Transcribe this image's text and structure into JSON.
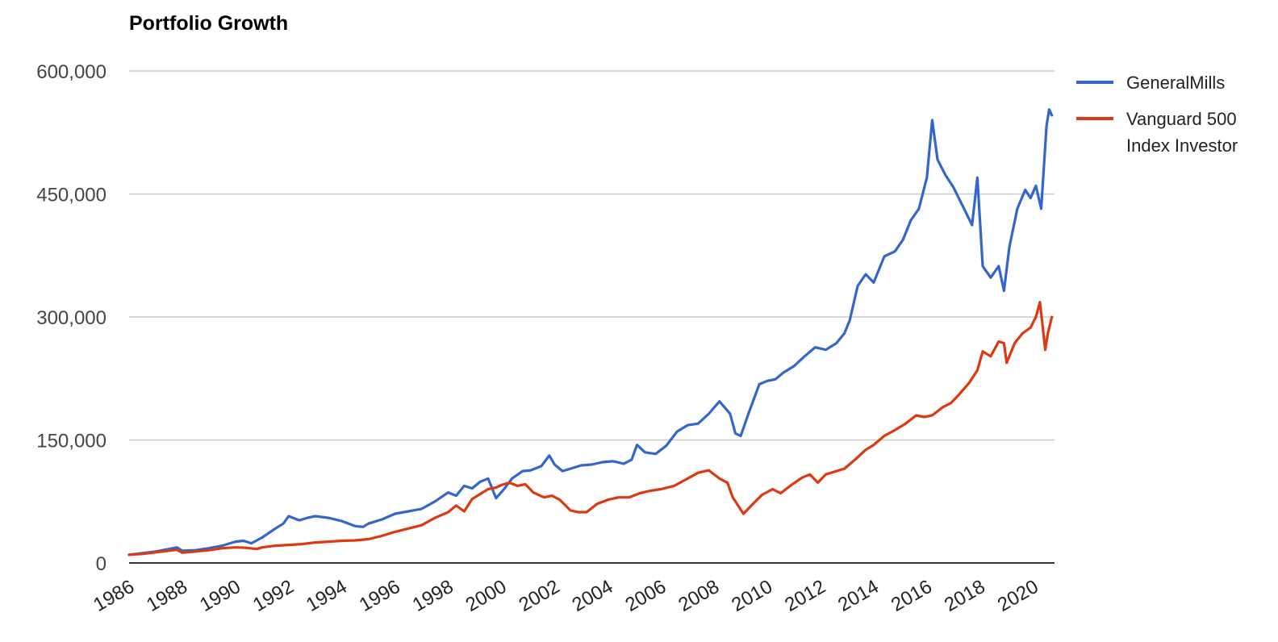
{
  "chart_data": {
    "type": "line",
    "title": "Portfolio Growth",
    "xlabel": "",
    "ylabel": "",
    "x_ticks": [
      "1986",
      "1988",
      "1990",
      "1992",
      "1994",
      "1996",
      "1998",
      "2000",
      "2002",
      "2004",
      "2006",
      "2008",
      "2010",
      "2012",
      "2014",
      "2016",
      "2018",
      "2020"
    ],
    "y_ticks": [
      "0",
      "150,000",
      "300,000",
      "450,000",
      "600,000"
    ],
    "xlim": [
      1986.0,
      2020.8
    ],
    "ylim": [
      0,
      600000
    ],
    "grid": true,
    "legend_position": "right",
    "series": [
      {
        "name": "GeneralMills",
        "legend_lines": [
          "GeneralMills"
        ],
        "color": "#3366cc",
        "points": [
          [
            1986.0,
            10000
          ],
          [
            1986.5,
            12000
          ],
          [
            1987.0,
            14000
          ],
          [
            1987.5,
            17000
          ],
          [
            1987.8,
            19000
          ],
          [
            1988.0,
            15000
          ],
          [
            1988.5,
            15500
          ],
          [
            1989.0,
            18000
          ],
          [
            1989.5,
            21000
          ],
          [
            1990.0,
            26000
          ],
          [
            1990.3,
            27000
          ],
          [
            1990.6,
            24000
          ],
          [
            1991.0,
            31000
          ],
          [
            1991.5,
            42000
          ],
          [
            1991.8,
            48000
          ],
          [
            1992.0,
            57000
          ],
          [
            1992.4,
            52000
          ],
          [
            1992.7,
            55000
          ],
          [
            1993.0,
            57000
          ],
          [
            1993.5,
            55000
          ],
          [
            1994.0,
            51000
          ],
          [
            1994.5,
            45000
          ],
          [
            1994.8,
            44000
          ],
          [
            1995.0,
            48000
          ],
          [
            1995.5,
            53000
          ],
          [
            1996.0,
            60000
          ],
          [
            1996.5,
            63000
          ],
          [
            1997.0,
            66000
          ],
          [
            1997.5,
            75000
          ],
          [
            1998.0,
            86000
          ],
          [
            1998.3,
            82000
          ],
          [
            1998.6,
            94000
          ],
          [
            1998.9,
            91000
          ],
          [
            1999.2,
            99000
          ],
          [
            1999.5,
            103000
          ],
          [
            1999.8,
            79000
          ],
          [
            2000.1,
            90000
          ],
          [
            2000.4,
            103000
          ],
          [
            2000.8,
            112000
          ],
          [
            2001.1,
            113000
          ],
          [
            2001.5,
            118000
          ],
          [
            2001.8,
            131000
          ],
          [
            2002.0,
            120000
          ],
          [
            2002.3,
            112000
          ],
          [
            2002.6,
            115000
          ],
          [
            2003.0,
            119000
          ],
          [
            2003.4,
            120000
          ],
          [
            2003.8,
            123000
          ],
          [
            2004.2,
            124000
          ],
          [
            2004.6,
            121000
          ],
          [
            2004.9,
            126000
          ],
          [
            2005.1,
            144000
          ],
          [
            2005.4,
            135000
          ],
          [
            2005.8,
            133000
          ],
          [
            2006.2,
            143000
          ],
          [
            2006.6,
            160000
          ],
          [
            2007.0,
            168000
          ],
          [
            2007.4,
            170000
          ],
          [
            2007.8,
            182000
          ],
          [
            2008.2,
            197000
          ],
          [
            2008.6,
            182000
          ],
          [
            2008.8,
            158000
          ],
          [
            2009.0,
            155000
          ],
          [
            2009.3,
            183000
          ],
          [
            2009.7,
            218000
          ],
          [
            2010.0,
            222000
          ],
          [
            2010.3,
            224000
          ],
          [
            2010.6,
            232000
          ],
          [
            2011.0,
            240000
          ],
          [
            2011.4,
            252000
          ],
          [
            2011.8,
            263000
          ],
          [
            2012.2,
            260000
          ],
          [
            2012.6,
            268000
          ],
          [
            2012.9,
            280000
          ],
          [
            2013.1,
            296000
          ],
          [
            2013.4,
            338000
          ],
          [
            2013.7,
            352000
          ],
          [
            2014.0,
            342000
          ],
          [
            2014.4,
            374000
          ],
          [
            2014.8,
            380000
          ],
          [
            2015.1,
            394000
          ],
          [
            2015.4,
            418000
          ],
          [
            2015.7,
            432000
          ],
          [
            2016.0,
            470000
          ],
          [
            2016.2,
            540000
          ],
          [
            2016.4,
            492000
          ],
          [
            2016.7,
            473000
          ],
          [
            2017.0,
            458000
          ],
          [
            2017.4,
            432000
          ],
          [
            2017.7,
            412000
          ],
          [
            2017.9,
            470000
          ],
          [
            2018.1,
            362000
          ],
          [
            2018.4,
            348000
          ],
          [
            2018.7,
            362000
          ],
          [
            2018.9,
            332000
          ],
          [
            2019.1,
            385000
          ],
          [
            2019.4,
            432000
          ],
          [
            2019.7,
            455000
          ],
          [
            2019.9,
            445000
          ],
          [
            2020.1,
            460000
          ],
          [
            2020.3,
            432000
          ],
          [
            2020.5,
            533000
          ],
          [
            2020.6,
            553000
          ],
          [
            2020.7,
            546000
          ]
        ]
      },
      {
        "name": "Vanguard 500 Index Investor",
        "legend_lines": [
          "Vanguard 500",
          "Index Investor"
        ],
        "color": "#dc3912",
        "points": [
          [
            1986.0,
            10000
          ],
          [
            1986.5,
            11000
          ],
          [
            1987.0,
            13000
          ],
          [
            1987.5,
            15000
          ],
          [
            1987.8,
            16000
          ],
          [
            1988.0,
            12500
          ],
          [
            1988.5,
            14000
          ],
          [
            1989.0,
            15500
          ],
          [
            1989.5,
            18000
          ],
          [
            1990.0,
            19000
          ],
          [
            1990.4,
            18500
          ],
          [
            1990.8,
            17000
          ],
          [
            1991.0,
            19000
          ],
          [
            1991.5,
            21000
          ],
          [
            1992.0,
            22000
          ],
          [
            1992.5,
            23000
          ],
          [
            1993.0,
            25000
          ],
          [
            1993.5,
            26000
          ],
          [
            1994.0,
            27000
          ],
          [
            1994.5,
            27500
          ],
          [
            1995.0,
            29000
          ],
          [
            1995.5,
            33000
          ],
          [
            1996.0,
            38000
          ],
          [
            1996.5,
            42000
          ],
          [
            1997.0,
            46000
          ],
          [
            1997.5,
            55000
          ],
          [
            1998.0,
            62000
          ],
          [
            1998.3,
            70000
          ],
          [
            1998.6,
            63000
          ],
          [
            1998.9,
            78000
          ],
          [
            1999.2,
            84000
          ],
          [
            1999.5,
            90000
          ],
          [
            1999.8,
            92000
          ],
          [
            2000.0,
            95000
          ],
          [
            2000.3,
            98000
          ],
          [
            2000.6,
            94000
          ],
          [
            2000.9,
            96000
          ],
          [
            2001.2,
            86000
          ],
          [
            2001.6,
            80000
          ],
          [
            2001.9,
            82000
          ],
          [
            2002.2,
            77000
          ],
          [
            2002.6,
            64000
          ],
          [
            2002.9,
            62000
          ],
          [
            2003.2,
            62000
          ],
          [
            2003.6,
            72000
          ],
          [
            2004.0,
            77000
          ],
          [
            2004.4,
            80000
          ],
          [
            2004.8,
            80000
          ],
          [
            2005.2,
            85000
          ],
          [
            2005.6,
            88000
          ],
          [
            2006.0,
            90000
          ],
          [
            2006.5,
            94000
          ],
          [
            2007.0,
            103000
          ],
          [
            2007.4,
            110000
          ],
          [
            2007.8,
            113000
          ],
          [
            2008.2,
            103000
          ],
          [
            2008.5,
            98000
          ],
          [
            2008.7,
            80000
          ],
          [
            2008.9,
            70000
          ],
          [
            2009.1,
            60000
          ],
          [
            2009.4,
            70000
          ],
          [
            2009.8,
            83000
          ],
          [
            2010.2,
            90000
          ],
          [
            2010.5,
            85000
          ],
          [
            2010.9,
            95000
          ],
          [
            2011.3,
            104000
          ],
          [
            2011.6,
            108000
          ],
          [
            2011.9,
            98000
          ],
          [
            2012.2,
            108000
          ],
          [
            2012.6,
            112000
          ],
          [
            2012.9,
            115000
          ],
          [
            2013.3,
            126000
          ],
          [
            2013.7,
            138000
          ],
          [
            2014.0,
            144000
          ],
          [
            2014.4,
            155000
          ],
          [
            2014.8,
            162000
          ],
          [
            2015.2,
            170000
          ],
          [
            2015.6,
            180000
          ],
          [
            2015.9,
            178000
          ],
          [
            2016.2,
            180000
          ],
          [
            2016.6,
            190000
          ],
          [
            2016.9,
            195000
          ],
          [
            2017.2,
            205000
          ],
          [
            2017.6,
            220000
          ],
          [
            2017.9,
            235000
          ],
          [
            2018.1,
            258000
          ],
          [
            2018.4,
            252000
          ],
          [
            2018.7,
            270000
          ],
          [
            2018.9,
            268000
          ],
          [
            2019.0,
            244000
          ],
          [
            2019.3,
            268000
          ],
          [
            2019.6,
            280000
          ],
          [
            2019.9,
            287000
          ],
          [
            2020.1,
            300000
          ],
          [
            2020.25,
            318000
          ],
          [
            2020.35,
            290000
          ],
          [
            2020.45,
            260000
          ],
          [
            2020.55,
            280000
          ],
          [
            2020.7,
            300000
          ]
        ]
      }
    ]
  }
}
